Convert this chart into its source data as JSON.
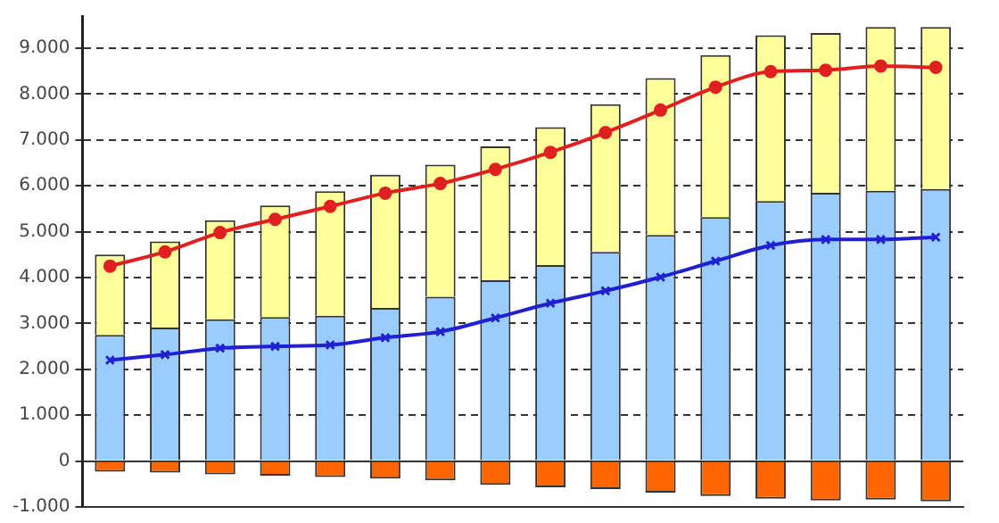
{
  "chart_data": {
    "type": "bar",
    "stacked": true,
    "categories": [
      null,
      null,
      null,
      null,
      null,
      null,
      null,
      null,
      null,
      null,
      null,
      null,
      null,
      null,
      null,
      null
    ],
    "series": [
      {
        "color": "#99ccff",
        "values": [
          2750,
          2910,
          3090,
          3140,
          3170,
          3340,
          3580,
          3940,
          4270,
          4560,
          4930,
          5320,
          5670,
          5850,
          5890,
          5930
        ]
      },
      {
        "color": "#ffff99",
        "values": [
          1750,
          1880,
          2160,
          2430,
          2710,
          2900,
          2880,
          2920,
          3010,
          3220,
          3420,
          3530,
          3610,
          3480,
          3570,
          3530
        ]
      },
      {
        "color": "#ff6600",
        "values": [
          -230,
          -250,
          -290,
          -320,
          -350,
          -380,
          -420,
          -520,
          -570,
          -610,
          -690,
          -760,
          -820,
          -860,
          -840,
          -880
        ]
      },
      {
        "type": "line",
        "color": "#e02020",
        "marker": "circle",
        "values": [
          4250,
          4560,
          4980,
          5270,
          5550,
          5840,
          6050,
          6360,
          6730,
          7160,
          7650,
          8150,
          8490,
          8520,
          8610,
          8580
        ]
      },
      {
        "type": "line",
        "color": "#2020d0",
        "marker": "cross",
        "values": [
          2200,
          2320,
          2460,
          2500,
          2530,
          2690,
          2820,
          3120,
          3440,
          3710,
          4010,
          4360,
          4700,
          4830,
          4830,
          4880
        ]
      }
    ],
    "ylim": [
      -1000,
      9700
    ],
    "yticks": [
      {
        "value": -1000,
        "label": "-1.000"
      },
      {
        "value": 0,
        "label": "0"
      },
      {
        "value": 1000,
        "label": "1.000"
      },
      {
        "value": 2000,
        "label": "2.000"
      },
      {
        "value": 3000,
        "label": "3.000"
      },
      {
        "value": 4000,
        "label": "4.000"
      },
      {
        "value": 5000,
        "label": "5.000"
      },
      {
        "value": 6000,
        "label": "6.000"
      },
      {
        "value": 7000,
        "label": "7.000"
      },
      {
        "value": 8000,
        "label": "8.000"
      },
      {
        "value": 9000,
        "label": "9.000"
      }
    ],
    "grid": "y",
    "tick_labels": "y",
    "legend": false
  }
}
